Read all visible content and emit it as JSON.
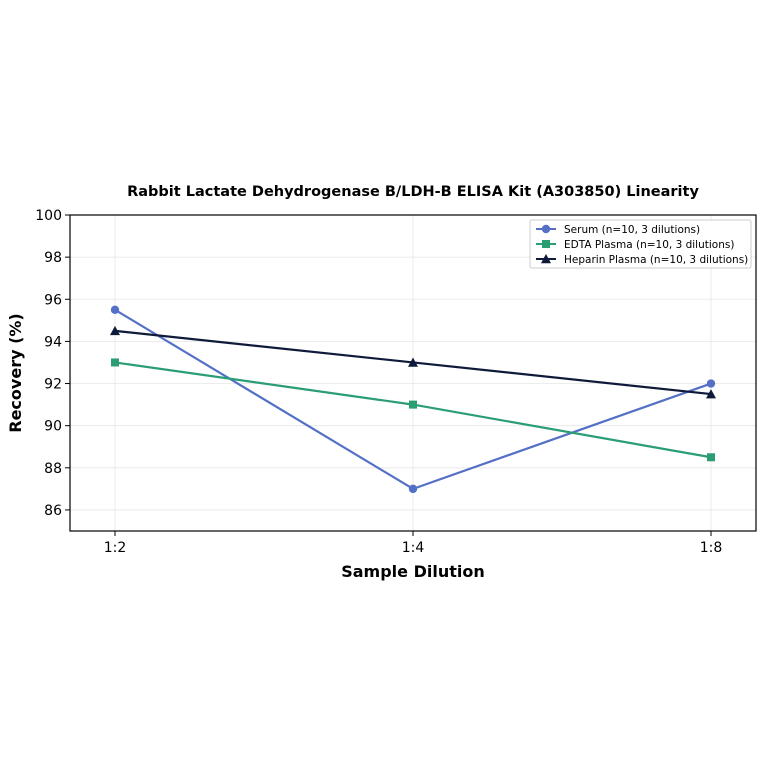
{
  "chart_data": {
    "type": "line",
    "title": "Rabbit Lactate Dehydrogenase B/LDH-B ELISA Kit (A303850) Linearity",
    "xlabel": "Sample Dilution",
    "ylabel": "Recovery (%)",
    "categories": [
      "1:2",
      "1:4",
      "1:8"
    ],
    "ylim": [
      85,
      100
    ],
    "yticks": [
      86,
      88,
      90,
      92,
      94,
      96,
      98,
      100
    ],
    "grid": true,
    "legend_position": "top-right",
    "series": [
      {
        "name": "Serum (n=10, 3 dilutions)",
        "values": [
          95.5,
          87.0,
          92.0
        ],
        "color": "#5470c6",
        "marker": "circle"
      },
      {
        "name": "EDTA Plasma (n=10, 3 dilutions)",
        "values": [
          93.0,
          91.0,
          88.5
        ],
        "color": "#2a9d73",
        "marker": "square"
      },
      {
        "name": "Heparin Plasma (n=10, 3 dilutions)",
        "values": [
          94.5,
          93.0,
          91.5
        ],
        "color": "#0f1a3a",
        "marker": "triangle"
      }
    ]
  }
}
